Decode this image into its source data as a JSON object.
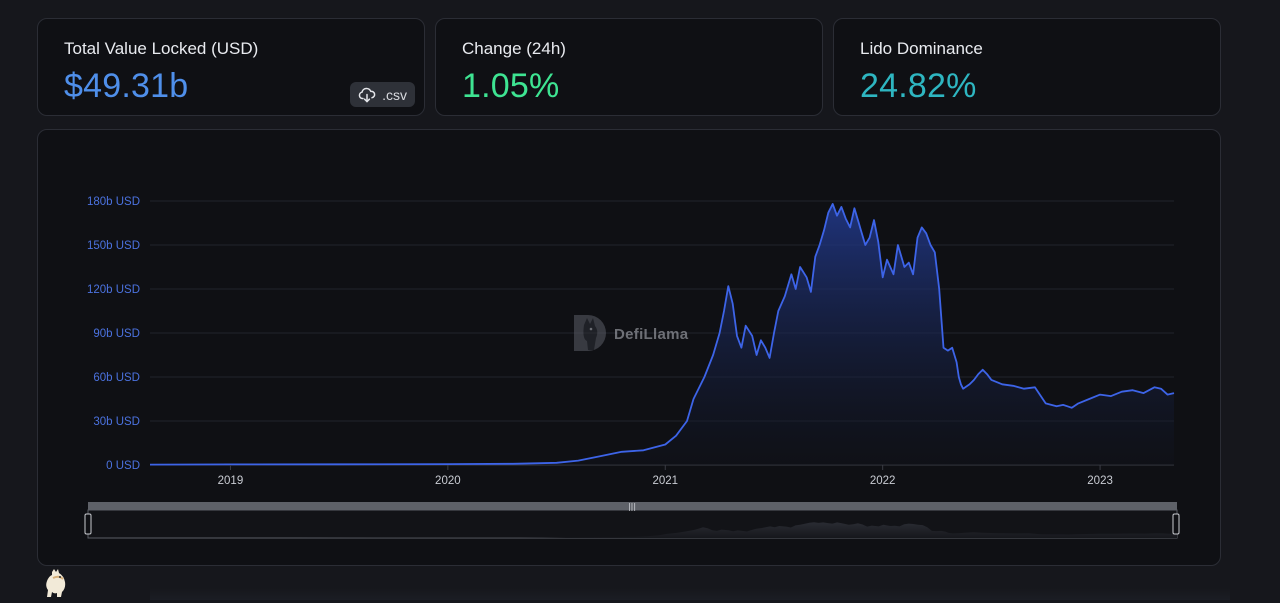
{
  "stats": {
    "tvl": {
      "label": "Total Value Locked (USD)",
      "value": "$49.31b",
      "csv_label": ".csv"
    },
    "change": {
      "label": "Change (24h)",
      "value": "1.05%"
    },
    "dominance": {
      "label": "Lido Dominance",
      "value": "24.82%"
    }
  },
  "watermark": {
    "text": "DefiLlama"
  },
  "icons": {
    "csv": "cloud-download-icon",
    "watermark": "defillama-llama-icon",
    "bottom": "llama-mascot-icon"
  },
  "colors": {
    "line": "#3d64e8",
    "fill_top": "#223a8f",
    "axis_text": "#4b72df",
    "grid": "#22242b"
  },
  "chart_data": {
    "type": "area",
    "title": "",
    "xlabel": "",
    "ylabel": "",
    "ylim": [
      0,
      180
    ],
    "y_ticks": [
      0,
      30,
      60,
      90,
      120,
      150,
      180
    ],
    "y_tick_labels": [
      "0 USD",
      "30b USD",
      "60b USD",
      "90b USD",
      "120b USD",
      "150b USD",
      "180b USD"
    ],
    "x_range": [
      2018.63,
      2023.34
    ],
    "x_ticks": [
      2019,
      2020,
      2021,
      2022,
      2023
    ],
    "x_tick_labels": [
      "2019",
      "2020",
      "2021",
      "2022",
      "2023"
    ],
    "grid": true,
    "legend": "none",
    "series": [
      {
        "x": [
          2018.63,
          2019.0,
          2019.5,
          2020.0,
          2020.3,
          2020.5,
          2020.6,
          2020.7,
          2020.8,
          2020.9,
          2021.0,
          2021.05,
          2021.1,
          2021.13,
          2021.18,
          2021.22,
          2021.25,
          2021.27,
          2021.29,
          2021.31,
          2021.33,
          2021.35,
          2021.37,
          2021.4,
          2021.42,
          2021.44,
          2021.46,
          2021.48,
          2021.5,
          2021.52,
          2021.55,
          2021.58,
          2021.6,
          2021.62,
          2021.65,
          2021.67,
          2021.69,
          2021.71,
          2021.73,
          2021.75,
          2021.77,
          2021.79,
          2021.81,
          2021.83,
          2021.85,
          2021.87,
          2021.89,
          2021.9,
          2021.92,
          2021.94,
          2021.96,
          2021.98,
          2022.0,
          2022.02,
          2022.05,
          2022.07,
          2022.1,
          2022.12,
          2022.14,
          2022.16,
          2022.18,
          2022.2,
          2022.22,
          2022.24,
          2022.26,
          2022.28,
          2022.3,
          2022.32,
          2022.34,
          2022.35,
          2022.36,
          2022.37,
          2022.4,
          2022.42,
          2022.44,
          2022.46,
          2022.48,
          2022.5,
          2022.55,
          2022.6,
          2022.65,
          2022.7,
          2022.75,
          2022.8,
          2022.83,
          2022.85,
          2022.87,
          2022.9,
          2022.95,
          2023.0,
          2023.05,
          2023.1,
          2023.15,
          2023.2,
          2023.25,
          2023.28,
          2023.31,
          2023.34
        ],
        "values": [
          0.3,
          0.4,
          0.5,
          0.6,
          0.8,
          1.5,
          3,
          6,
          9,
          10,
          14,
          20,
          30,
          45,
          60,
          75,
          90,
          105,
          122,
          110,
          88,
          80,
          95,
          88,
          75,
          85,
          80,
          73,
          90,
          105,
          115,
          130,
          120,
          135,
          128,
          118,
          142,
          150,
          160,
          172,
          178,
          170,
          176,
          168,
          162,
          175,
          165,
          160,
          150,
          155,
          167,
          152,
          128,
          140,
          130,
          150,
          135,
          138,
          130,
          155,
          162,
          158,
          150,
          145,
          120,
          80,
          78,
          80,
          70,
          60,
          55,
          52,
          55,
          58,
          62,
          65,
          62,
          58,
          55,
          54,
          52,
          53,
          42,
          40,
          41,
          40,
          39,
          42,
          45,
          48,
          47,
          50,
          51,
          49,
          53,
          52,
          48,
          49
        ]
      }
    ]
  }
}
